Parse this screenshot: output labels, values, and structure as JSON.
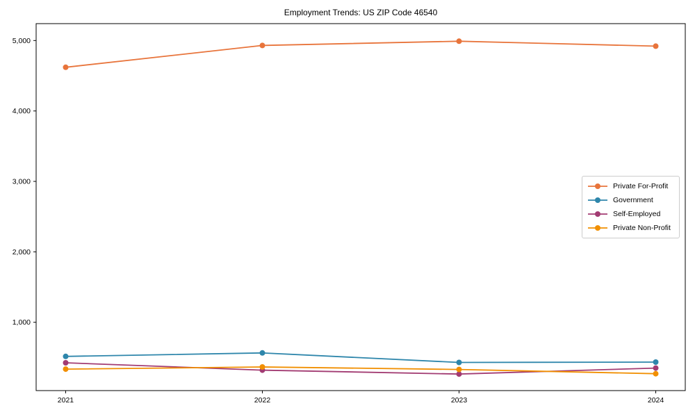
{
  "title": "Employment Trends: US ZIP Code 46540",
  "chart_data": {
    "type": "line",
    "title": "Employment Trends: US ZIP Code 46540",
    "xlabel": "",
    "ylabel": "",
    "x": [
      2021,
      2022,
      2023,
      2024
    ],
    "series": [
      {
        "name": "Private For-Profit",
        "color": "#E8743B",
        "values": [
          4620,
          4930,
          4990,
          4920
        ]
      },
      {
        "name": "Government",
        "color": "#2E86AB",
        "values": [
          515,
          565,
          430,
          435
        ]
      },
      {
        "name": "Self-Employed",
        "color": "#A23B72",
        "values": [
          425,
          320,
          265,
          350
        ]
      },
      {
        "name": "Private Non-Profit",
        "color": "#F18F01",
        "values": [
          335,
          365,
          330,
          270
        ]
      }
    ],
    "xticks": {
      "values": [
        2021,
        2022,
        2023,
        2024
      ],
      "labels": [
        "2021",
        "2022",
        "2023",
        "2024"
      ]
    },
    "yticks": {
      "values": [
        1000,
        2000,
        3000,
        4000,
        5000
      ],
      "labels": [
        "1,000",
        "2,000",
        "3,000",
        "4,000",
        "5,000"
      ]
    },
    "xlim": [
      2020.85,
      2024.15
    ],
    "ylim": [
      30,
      5240
    ],
    "grid": false,
    "legend_position": "center right",
    "line_width": 1.8,
    "marker": "circle",
    "marker_radius": 4,
    "spine_color": "#000000",
    "background_color": "#ffffff"
  }
}
